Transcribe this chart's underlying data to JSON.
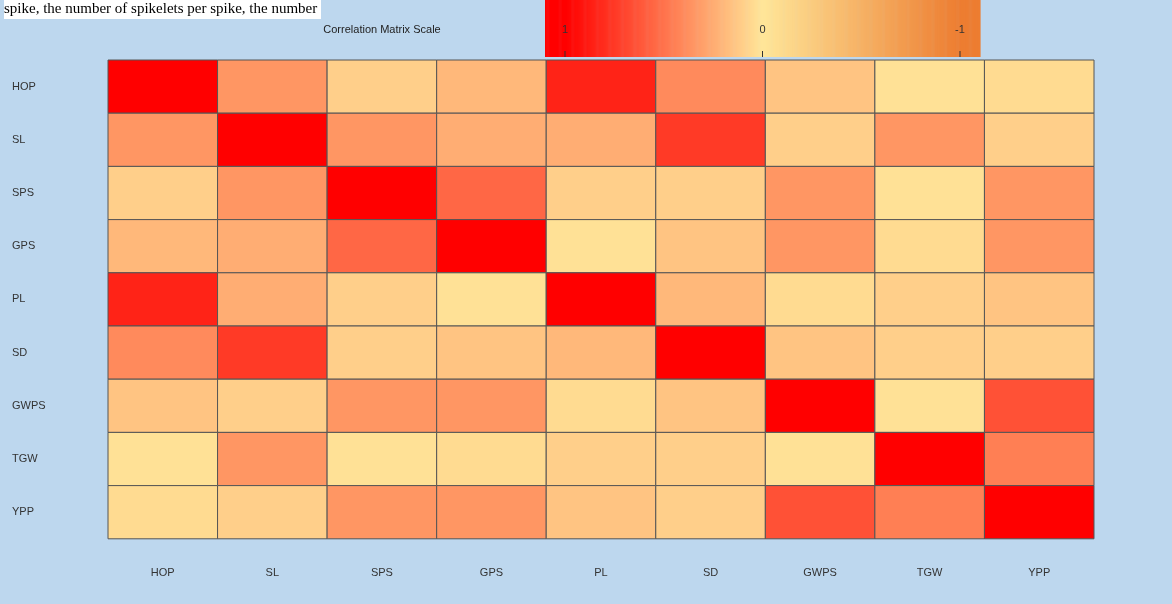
{
  "chart_data": {
    "type": "heatmap",
    "clabel": "Correlation Matrix Scale",
    "annotations": [
      "spike, the number of spikelets per spike, the number"
    ],
    "categories": [
      "HOP",
      "SL",
      "SPS",
      "GPS",
      "PL",
      "SD",
      "GWPS",
      "TGW",
      "YPP"
    ],
    "y_categories": [
      "HOP",
      "SL",
      "SPS",
      "GPS",
      "PL",
      "SD",
      "GWPS",
      "TGW",
      "YPP"
    ],
    "clim": [
      -1,
      1
    ],
    "cticks": [
      1,
      0,
      -1
    ],
    "cells": [
      [
        1,
        0.35,
        0.1,
        0.2,
        0.85,
        0.4,
        0.15,
        0.02,
        0.05
      ],
      [
        0.35,
        1,
        0.35,
        0.25,
        0.25,
        0.75,
        0.1,
        0.35,
        0.1
      ],
      [
        0.1,
        0.35,
        1,
        0.55,
        0.1,
        0.1,
        0.35,
        0.02,
        0.35
      ],
      [
        0.2,
        0.25,
        0.55,
        1,
        0.02,
        0.15,
        0.35,
        0.05,
        0.35
      ],
      [
        0.85,
        0.25,
        0.1,
        0.02,
        1,
        0.2,
        0.05,
        0.1,
        0.15
      ],
      [
        0.4,
        0.75,
        0.1,
        0.15,
        0.2,
        1,
        0.15,
        0.1,
        0.1
      ],
      [
        0.15,
        0.1,
        0.35,
        0.35,
        0.05,
        0.15,
        1,
        0.02,
        0.65
      ],
      [
        0.02,
        0.35,
        0.02,
        0.05,
        0.1,
        0.1,
        0.02,
        1,
        0.45
      ],
      [
        0.05,
        0.1,
        0.35,
        0.35,
        0.15,
        0.1,
        0.65,
        0.45,
        1
      ]
    ]
  }
}
